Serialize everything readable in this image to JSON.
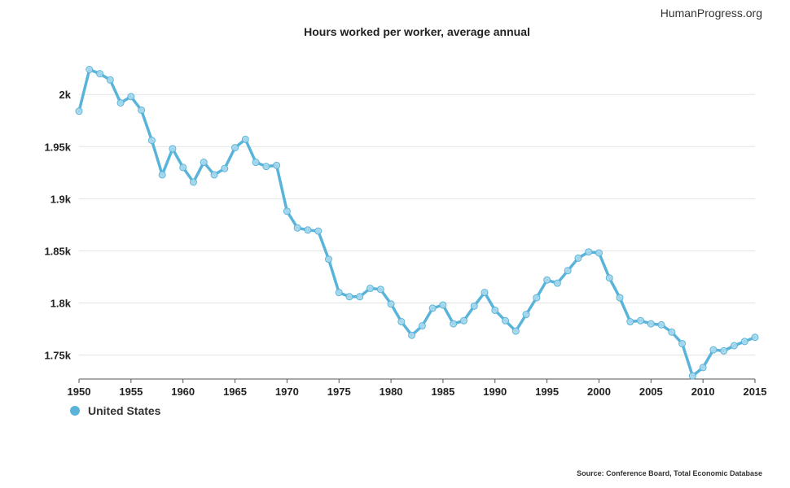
{
  "brand": "HumanProgress.org",
  "source": "Source: Conference Board, Total Economic Database",
  "colors": {
    "series": "#5ab4d9",
    "grid": "#e3e3e3",
    "axis": "#555555"
  },
  "chart_data": {
    "type": "line",
    "title": "Hours worked per worker, average annual",
    "xlabel": "",
    "ylabel": "",
    "xlim": [
      1950,
      2015
    ],
    "ylim": [
      1727,
      2040
    ],
    "x_ticks": [
      1950,
      1955,
      1960,
      1965,
      1970,
      1975,
      1980,
      1985,
      1990,
      1995,
      2000,
      2005,
      2010,
      2015
    ],
    "y_ticks": [
      {
        "value": 1750,
        "label": "1.75k"
      },
      {
        "value": 1800,
        "label": "1.8k"
      },
      {
        "value": 1850,
        "label": "1.85k"
      },
      {
        "value": 1900,
        "label": "1.9k"
      },
      {
        "value": 1950,
        "label": "1.95k"
      },
      {
        "value": 2000,
        "label": "2k"
      }
    ],
    "grid": true,
    "legend": "bottom-left",
    "x": [
      1950,
      1951,
      1952,
      1953,
      1954,
      1955,
      1956,
      1957,
      1958,
      1959,
      1960,
      1961,
      1962,
      1963,
      1964,
      1965,
      1966,
      1967,
      1968,
      1969,
      1970,
      1971,
      1972,
      1973,
      1974,
      1975,
      1976,
      1977,
      1978,
      1979,
      1980,
      1981,
      1982,
      1983,
      1984,
      1985,
      1986,
      1987,
      1988,
      1989,
      1990,
      1991,
      1992,
      1993,
      1994,
      1995,
      1996,
      1997,
      1998,
      1999,
      2000,
      2001,
      2002,
      2003,
      2004,
      2005,
      2006,
      2007,
      2008,
      2009,
      2010,
      2011,
      2012,
      2013,
      2014,
      2015
    ],
    "series": [
      {
        "name": "United States",
        "values": [
          1984,
          2024,
          2020,
          2014,
          1992,
          1998,
          1985,
          1956,
          1923,
          1948,
          1930,
          1916,
          1935,
          1923,
          1929,
          1949,
          1957,
          1935,
          1931,
          1932,
          1888,
          1872,
          1870,
          1869,
          1842,
          1810,
          1806,
          1806,
          1814,
          1813,
          1799,
          1782,
          1769,
          1778,
          1795,
          1798,
          1780,
          1783,
          1797,
          1810,
          1793,
          1783,
          1773,
          1789,
          1805,
          1822,
          1819,
          1831,
          1843,
          1849,
          1848,
          1824,
          1805,
          1782,
          1783,
          1780,
          1779,
          1772,
          1761,
          1730,
          1738,
          1755,
          1754,
          1759,
          1763,
          1767
        ]
      }
    ]
  }
}
